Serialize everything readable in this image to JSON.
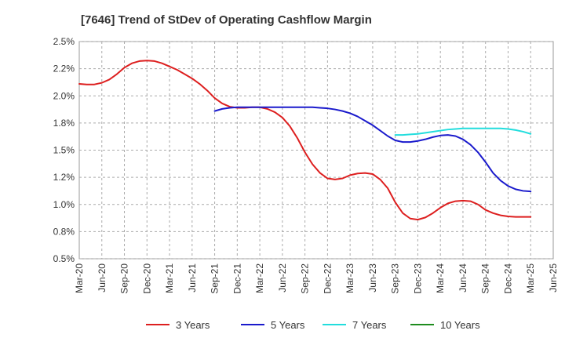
{
  "chart_data": {
    "type": "line",
    "title": "[7646]  Trend of StDev of Operating Cashflow Margin",
    "xlabel": "",
    "ylabel": "",
    "ylim": [
      0.5,
      2.5
    ],
    "yticks": [
      0.5,
      0.75,
      1.0,
      1.25,
      1.5,
      1.75,
      2.0,
      2.25,
      2.5
    ],
    "ytick_labels": [
      "0.5%",
      "0.8%",
      "1.0%",
      "1.2%",
      "1.5%",
      "1.8%",
      "2.0%",
      "2.2%",
      "2.5%"
    ],
    "x_categories": [
      "Mar-20",
      "Jun-20",
      "Sep-20",
      "Dec-20",
      "Mar-21",
      "Jun-21",
      "Sep-21",
      "Dec-21",
      "Mar-22",
      "Jun-22",
      "Sep-22",
      "Dec-22",
      "Mar-23",
      "Jun-23",
      "Sep-23",
      "Dec-23",
      "Mar-24",
      "Jun-24",
      "Sep-24",
      "Dec-24",
      "Mar-25",
      "Jun-25"
    ],
    "grid": true,
    "legend_position": "bottom",
    "series": [
      {
        "name": "3 Years",
        "color": "#dd1f1f",
        "x": [
          "Mar-20",
          "Apr-20",
          "May-20",
          "Jun-20",
          "Jul-20",
          "Aug-20",
          "Sep-20",
          "Oct-20",
          "Nov-20",
          "Dec-20",
          "Jan-21",
          "Feb-21",
          "Mar-21",
          "Apr-21",
          "May-21",
          "Jun-21",
          "Jul-21",
          "Aug-21",
          "Sep-21",
          "Oct-21",
          "Nov-21",
          "Dec-21",
          "Jan-22",
          "Feb-22",
          "Mar-22",
          "Apr-22",
          "May-22",
          "Jun-22",
          "Jul-22",
          "Aug-22",
          "Sep-22",
          "Oct-22",
          "Nov-22",
          "Dec-22",
          "Jan-23",
          "Feb-23",
          "Mar-23",
          "Apr-23",
          "May-23",
          "Jun-23",
          "Jul-23",
          "Aug-23",
          "Sep-23",
          "Oct-23",
          "Nov-23",
          "Dec-23",
          "Jan-24",
          "Feb-24",
          "Mar-24",
          "Apr-24",
          "May-24",
          "Jun-24",
          "Jul-24",
          "Aug-24",
          "Sep-24",
          "Oct-24",
          "Nov-24",
          "Dec-24",
          "Jan-25",
          "Feb-25",
          "Mar-25"
        ],
        "values": [
          2.11,
          2.105,
          2.105,
          2.12,
          2.15,
          2.2,
          2.26,
          2.3,
          2.32,
          2.325,
          2.32,
          2.3,
          2.27,
          2.24,
          2.2,
          2.16,
          2.11,
          2.05,
          1.98,
          1.93,
          1.9,
          1.89,
          1.89,
          1.895,
          1.895,
          1.88,
          1.85,
          1.8,
          1.72,
          1.61,
          1.48,
          1.37,
          1.29,
          1.24,
          1.23,
          1.24,
          1.27,
          1.285,
          1.29,
          1.28,
          1.23,
          1.15,
          1.02,
          0.92,
          0.87,
          0.86,
          0.88,
          0.92,
          0.97,
          1.01,
          1.03,
          1.035,
          1.03,
          1.0,
          0.95,
          0.92,
          0.9,
          0.89,
          0.885,
          0.885,
          0.885
        ]
      },
      {
        "name": "5 Years",
        "color": "#1a1acc",
        "x": [
          "Sep-21",
          "Oct-21",
          "Nov-21",
          "Dec-21",
          "Jan-22",
          "Feb-22",
          "Mar-22",
          "Apr-22",
          "May-22",
          "Jun-22",
          "Jul-22",
          "Aug-22",
          "Sep-22",
          "Oct-22",
          "Nov-22",
          "Dec-22",
          "Jan-23",
          "Feb-23",
          "Mar-23",
          "Apr-23",
          "May-23",
          "Jun-23",
          "Jul-23",
          "Aug-23",
          "Sep-23",
          "Oct-23",
          "Nov-23",
          "Dec-23",
          "Jan-24",
          "Feb-24",
          "Mar-24",
          "Apr-24",
          "May-24",
          "Jun-24",
          "Jul-24",
          "Aug-24",
          "Sep-24",
          "Oct-24",
          "Nov-24",
          "Dec-24",
          "Jan-25",
          "Feb-25",
          "Mar-25"
        ],
        "values": [
          1.86,
          1.88,
          1.89,
          1.895,
          1.895,
          1.895,
          1.895,
          1.895,
          1.895,
          1.895,
          1.895,
          1.895,
          1.895,
          1.895,
          1.89,
          1.885,
          1.875,
          1.86,
          1.84,
          1.81,
          1.77,
          1.73,
          1.68,
          1.63,
          1.59,
          1.575,
          1.575,
          1.585,
          1.6,
          1.62,
          1.635,
          1.64,
          1.63,
          1.6,
          1.55,
          1.48,
          1.39,
          1.29,
          1.22,
          1.17,
          1.14,
          1.125,
          1.12
        ]
      },
      {
        "name": "7 Years",
        "color": "#22dddd",
        "x": [
          "Sep-23",
          "Oct-23",
          "Nov-23",
          "Dec-23",
          "Jan-24",
          "Feb-24",
          "Mar-24",
          "Apr-24",
          "May-24",
          "Jun-24",
          "Jul-24",
          "Aug-24",
          "Sep-24",
          "Oct-24",
          "Nov-24",
          "Dec-24",
          "Jan-25",
          "Feb-25",
          "Mar-25"
        ],
        "values": [
          1.64,
          1.64,
          1.645,
          1.65,
          1.66,
          1.67,
          1.68,
          1.69,
          1.695,
          1.7,
          1.7,
          1.7,
          1.7,
          1.7,
          1.7,
          1.695,
          1.685,
          1.67,
          1.65
        ]
      },
      {
        "name": "10 Years",
        "color": "#1e8c1e",
        "x": [],
        "values": []
      }
    ]
  }
}
